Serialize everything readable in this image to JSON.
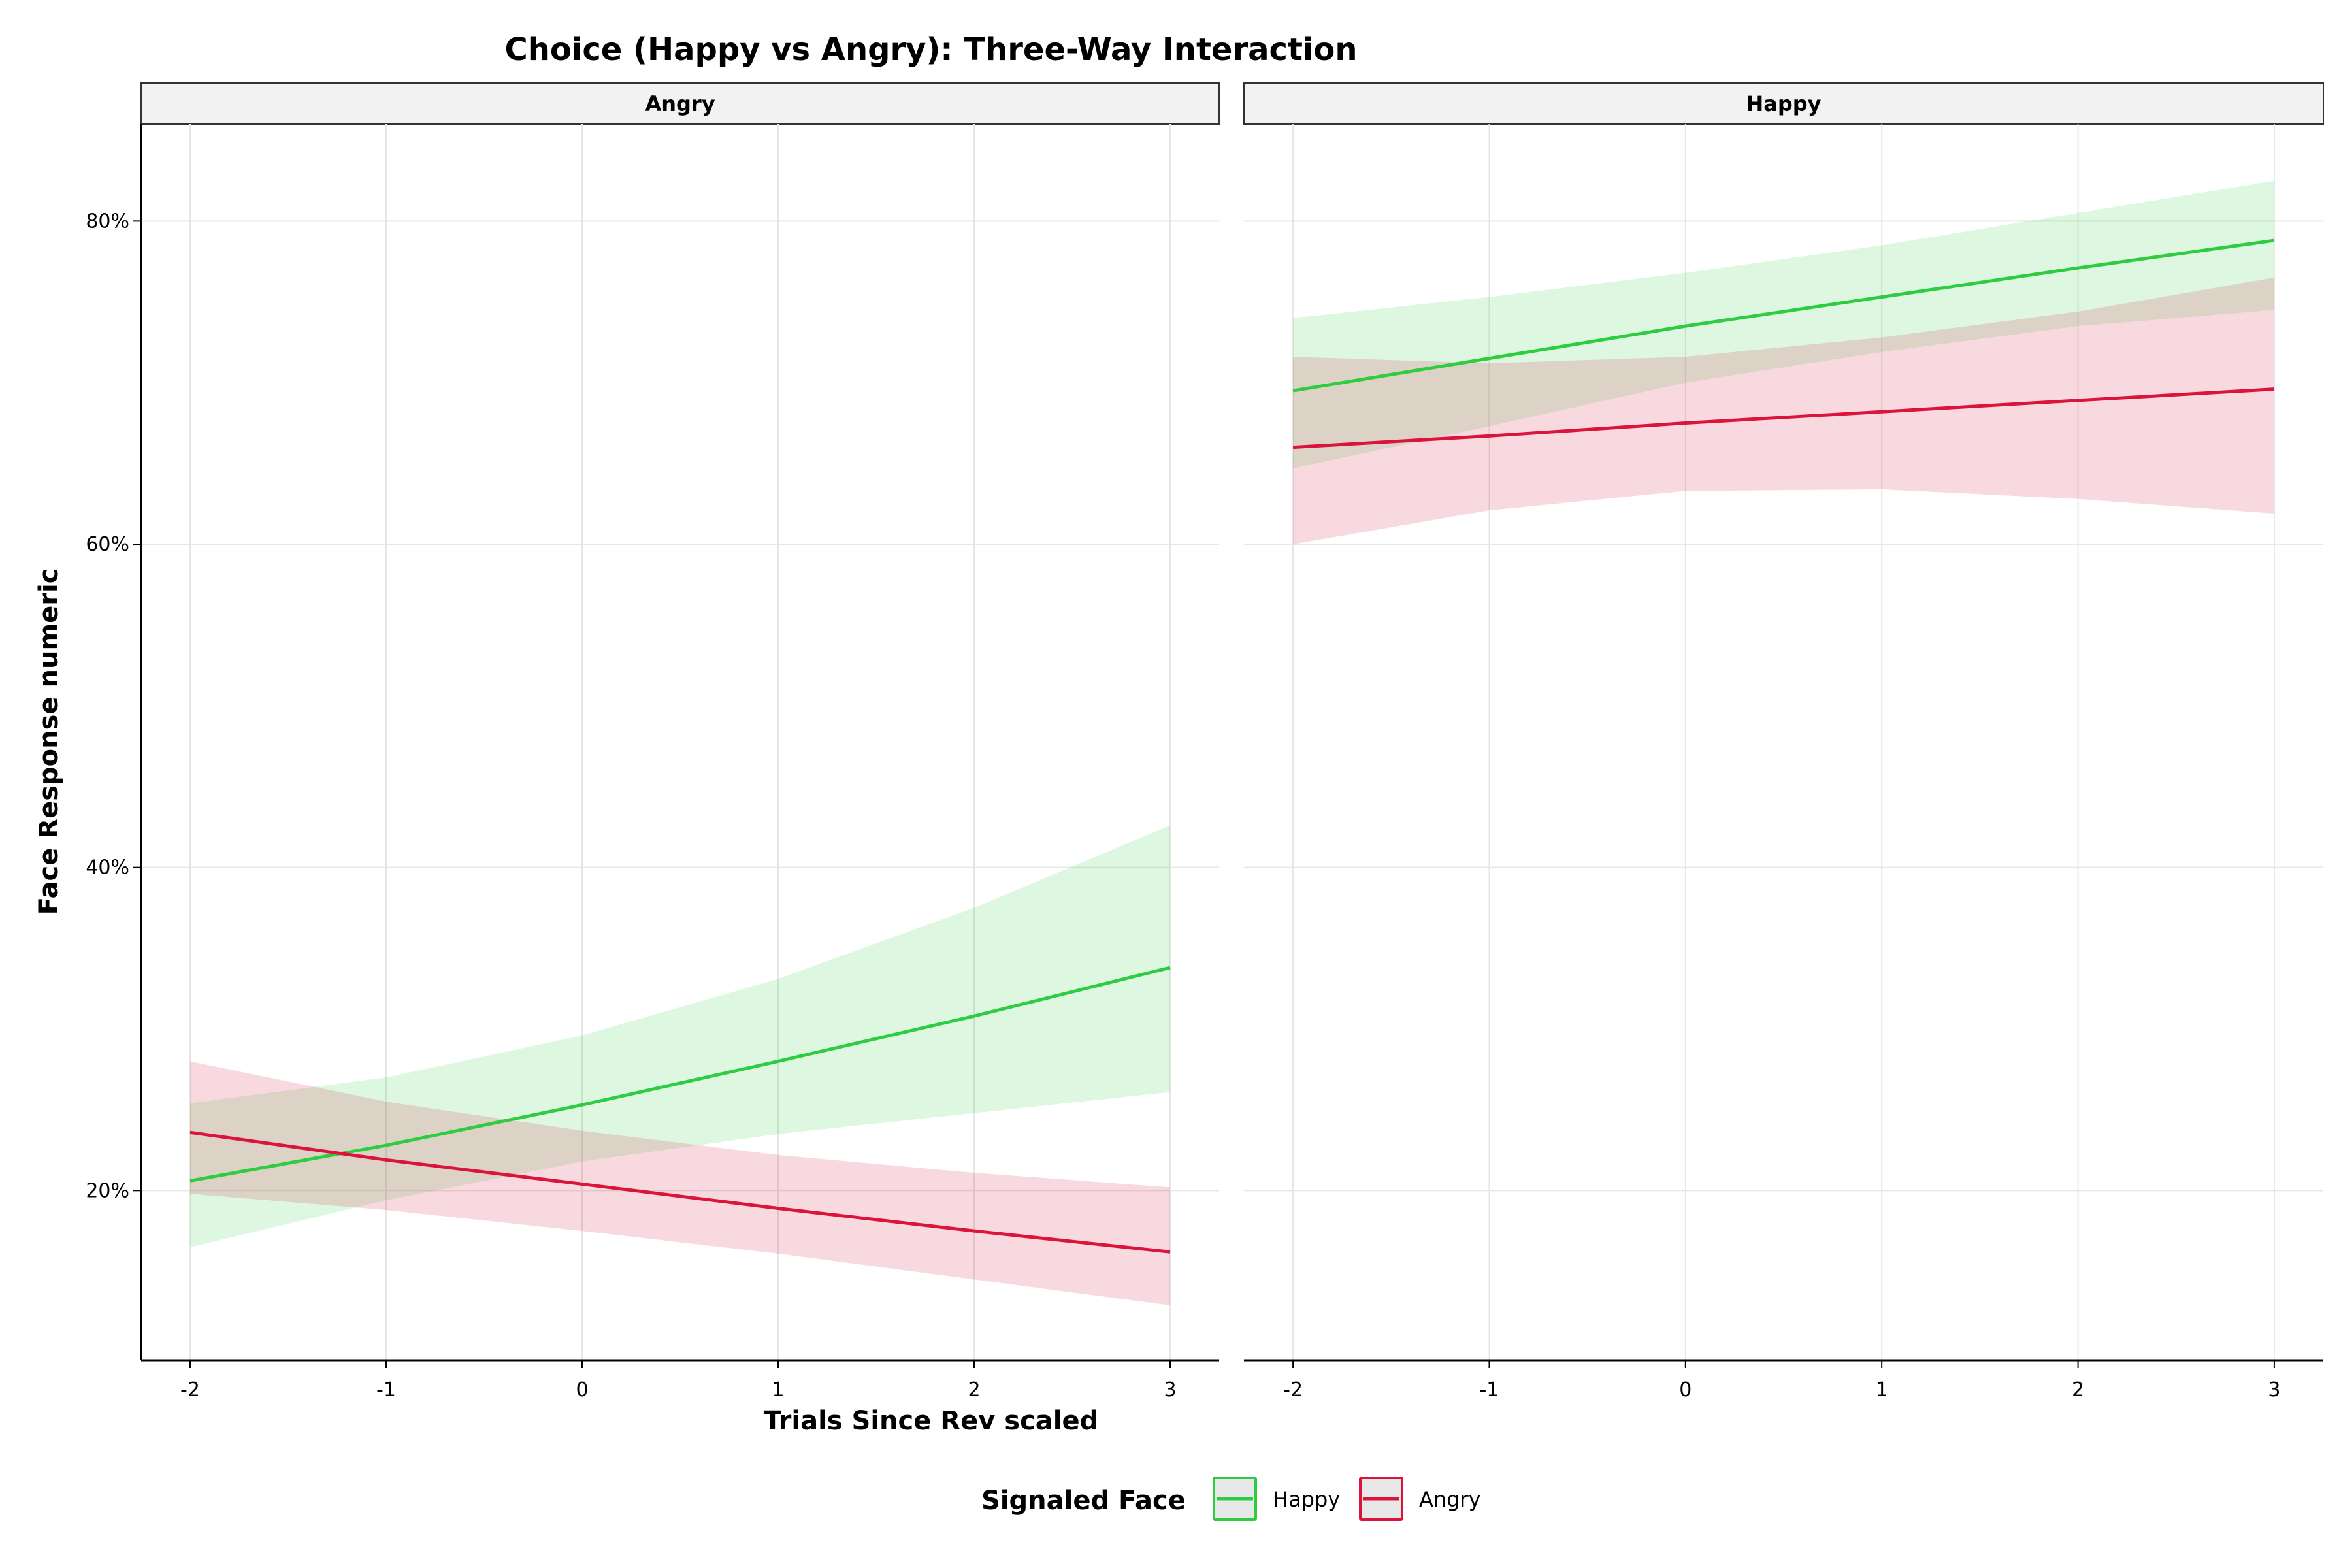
{
  "chart_data": {
    "type": "line",
    "title": "Choice (Happy vs Angry): Three-Way Interaction",
    "xlabel": "Trials Since Rev scaled",
    "ylabel": "Face Response numeric",
    "x_ticks": [
      -2,
      -1,
      0,
      1,
      2,
      3
    ],
    "x_tick_labels": [
      "-2",
      "-1",
      "0",
      "1",
      "2",
      "3"
    ],
    "y_ticks": [
      0.2,
      0.4,
      0.6,
      0.8
    ],
    "y_tick_labels": [
      "20%",
      "40%",
      "60%",
      "80%"
    ],
    "xlim": [
      -2.25,
      3.25
    ],
    "ylim": [
      0.095,
      0.86
    ],
    "grid": true,
    "legend": {
      "title": "Signaled Face",
      "placement": "bottom",
      "entries": [
        {
          "label": "Happy",
          "color": "#2ecc40"
        },
        {
          "label": "Angry",
          "color": "#dc143c"
        }
      ]
    },
    "panels": [
      {
        "label": "Angry",
        "x": [
          -2,
          -1,
          0,
          1,
          2,
          3
        ],
        "series": [
          {
            "name": "Happy",
            "color": "#2ecc40",
            "values": [
              0.206,
              0.228,
              0.253,
              0.28,
              0.308,
              0.338
            ],
            "lower": [
              0.165,
              0.194,
              0.218,
              0.235,
              0.248,
              0.261
            ],
            "upper": [
              0.254,
              0.27,
              0.296,
              0.331,
              0.375,
              0.426
            ]
          },
          {
            "name": "Angry",
            "color": "#dc143c",
            "values": [
              0.236,
              0.219,
              0.204,
              0.189,
              0.175,
              0.162
            ],
            "lower": [
              0.198,
              0.188,
              0.175,
              0.161,
              0.145,
              0.129
            ],
            "upper": [
              0.28,
              0.255,
              0.237,
              0.222,
              0.211,
              0.202
            ]
          }
        ]
      },
      {
        "label": "Happy",
        "x": [
          -2,
          -1,
          0,
          1,
          2,
          3
        ],
        "series": [
          {
            "name": "Happy",
            "color": "#2ecc40",
            "values": [
              0.695,
              0.715,
              0.735,
              0.753,
              0.771,
              0.788
            ],
            "lower": [
              0.647,
              0.673,
              0.7,
              0.719,
              0.735,
              0.745
            ],
            "upper": [
              0.74,
              0.753,
              0.768,
              0.785,
              0.805,
              0.825
            ]
          },
          {
            "name": "Angry",
            "color": "#dc143c",
            "values": [
              0.66,
              0.667,
              0.675,
              0.682,
              0.689,
              0.696
            ],
            "lower": [
              0.6,
              0.621,
              0.633,
              0.634,
              0.628,
              0.619
            ],
            "upper": [
              0.716,
              0.712,
              0.716,
              0.728,
              0.744,
              0.765
            ]
          }
        ]
      }
    ]
  }
}
